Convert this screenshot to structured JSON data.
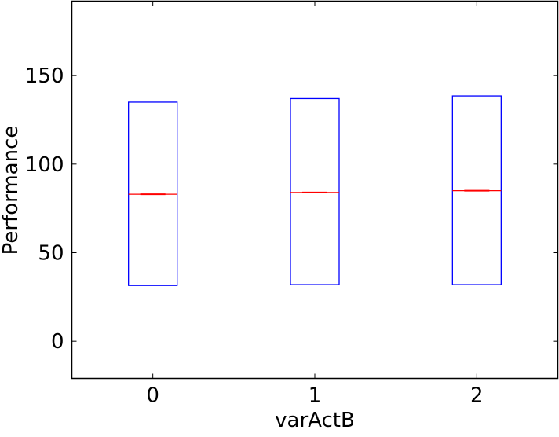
{
  "chart_data": {
    "type": "box",
    "title": "",
    "xlabel": "varActB",
    "ylabel": "Performance",
    "categories": [
      "0",
      "1",
      "2"
    ],
    "boxes": [
      {
        "category": "0",
        "q1": 31.5,
        "median": 83.0,
        "q3": 135.0
      },
      {
        "category": "1",
        "q1": 32.0,
        "median": 84.0,
        "q3": 137.0
      },
      {
        "category": "2",
        "q1": 32.0,
        "median": 85.0,
        "q3": 138.5
      }
    ],
    "ylim": [
      -21,
      192
    ],
    "yticks": [
      0,
      50,
      100,
      150
    ],
    "ytick_labels": [
      "0",
      "50",
      "100",
      "150"
    ],
    "xlim": [
      -0.5,
      2.5
    ],
    "grid": false,
    "colors": {
      "box": "#0000ff",
      "median": "#ff0000",
      "axes": "#000000",
      "background": "#ffffff"
    }
  }
}
